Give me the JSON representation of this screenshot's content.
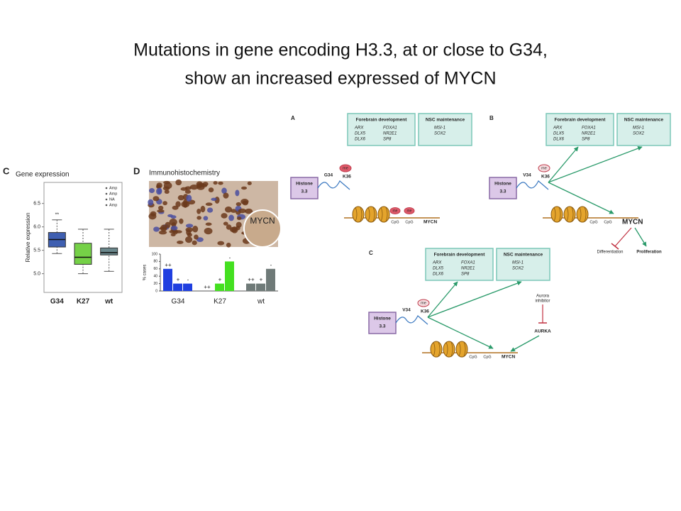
{
  "slide": {
    "title": [
      "Mutations in gene encoding H3.3, at or close to G34,",
      "show an increased expressed of MYCN"
    ]
  },
  "chart_data": [
    {
      "type": "box",
      "panel": "C",
      "title": "Gene expression",
      "ylabel": "Relative expression",
      "categories": [
        "G34",
        "K27",
        "wt"
      ],
      "colors": [
        "#2a4ea8",
        "#66cc33",
        "#5a7a80"
      ],
      "whisker_low": [
        5.43,
        5.0,
        5.05
      ],
      "q1": [
        5.57,
        5.2,
        5.4
      ],
      "median": [
        5.73,
        5.35,
        5.45
      ],
      "q3": [
        5.88,
        5.65,
        5.55
      ],
      "whisker_high": [
        6.15,
        5.95,
        5.95
      ],
      "ylim": [
        4.6,
        6.95
      ],
      "yticks": [
        {
          "value": 5,
          "label": "5.0"
        },
        5.5,
        {
          "value": 6,
          "label": "6.0"
        },
        6.5
      ],
      "annotation": "**",
      "legend": [
        "Amp",
        "Amp",
        "NA",
        "Amp"
      ]
    },
    {
      "type": "bar",
      "panel": "D",
      "title": "Immunohistochemistry",
      "image_label": "MYCN",
      "ylabel": "% cases",
      "groups": [
        {
          "name": "G34",
          "color": "#1f3fe0",
          "labels": [
            "++",
            "+",
            "-"
          ],
          "values": [
            60,
            20,
            20
          ]
        },
        {
          "name": "K27",
          "color": "#44e020",
          "labels": [
            "++",
            "+",
            "-"
          ],
          "values": [
            0,
            20,
            80
          ]
        },
        {
          "name": "wt",
          "color": "#6f7a78",
          "labels": [
            "++",
            "+",
            "-"
          ],
          "values": [
            20,
            20,
            60
          ]
        }
      ],
      "ylim": [
        0,
        100
      ],
      "yticks": [
        0,
        20,
        40,
        60,
        80,
        100
      ]
    }
  ],
  "diagrams": [
    {
      "panel": "A",
      "boxes": [
        {
          "title": "Forebrain development",
          "genes": [
            "ARX",
            "DLX5",
            "DLX6",
            "FOXA1",
            "NR2E1",
            "SP8"
          ]
        },
        {
          "title": "NSC maintenance",
          "genes": [
            "MSI-1",
            "SOX2"
          ]
        }
      ],
      "histone": [
        "Histone",
        "3.3"
      ],
      "residue": "G34",
      "k36": "K36",
      "me": "me",
      "cpg": [
        "CpG",
        "CpG"
      ],
      "cpg_me": [
        "me",
        "me"
      ],
      "target": "MYCN"
    },
    {
      "panel": "B",
      "boxes": [
        {
          "title": "Forebrain development",
          "genes": [
            "ARX",
            "DLX5",
            "DLX6",
            "FOXA1",
            "NR2E1",
            "SP8"
          ]
        },
        {
          "title": "NSC maintenance",
          "genes": [
            "MSI-1",
            "SOX2"
          ]
        }
      ],
      "histone": [
        "Histone",
        "3.3"
      ],
      "residue": "V34",
      "k36": "K36",
      "me": "me",
      "cpg": [
        "CpG",
        "CpG"
      ],
      "target": "MYCN",
      "outcomes": [
        "Differentiation",
        "Proliferation"
      ]
    },
    {
      "panel": "C",
      "boxes": [
        {
          "title": "Forebrain development",
          "genes": [
            "ARX",
            "DLX5",
            "DLX6",
            "FOXA1",
            "NR2E1",
            "SP8"
          ]
        },
        {
          "title": "NSC maintenance",
          "genes": [
            "MSI-1",
            "SOX2"
          ]
        }
      ],
      "histone": [
        "Histone",
        "3.3"
      ],
      "residue": "V34",
      "k36": "K36",
      "me": "me",
      "cpg": [
        "CpG",
        "CpG"
      ],
      "target": "MYCN",
      "inhibitor": [
        "Aurora",
        "inhibitor"
      ],
      "kinase": "AURKA"
    }
  ]
}
